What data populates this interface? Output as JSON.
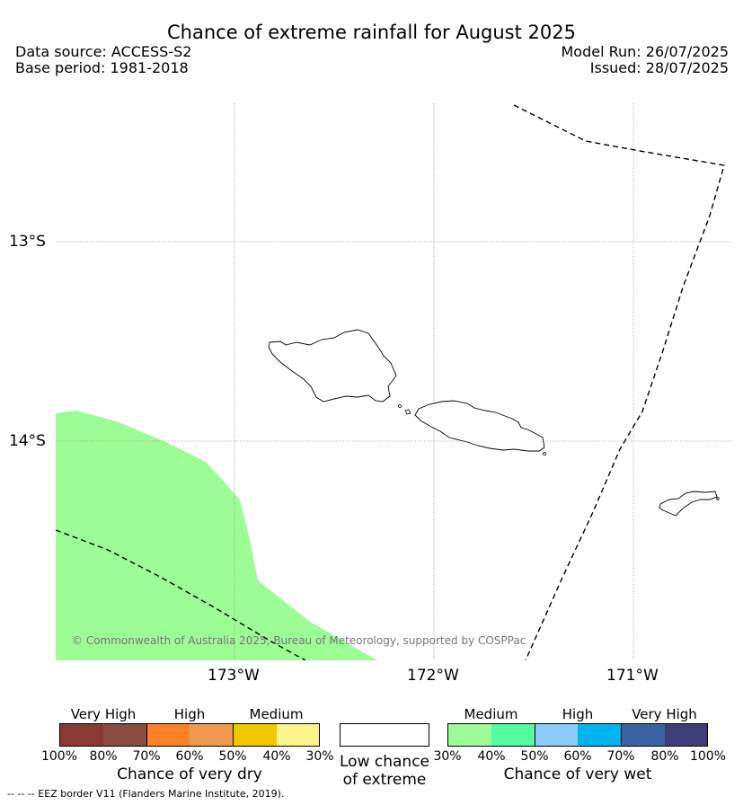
{
  "header": {
    "title": "Chance of extreme rainfall for August 2025",
    "data_source": "Data source: ACCESS-S2",
    "base_period": "Base period: 1981-2018",
    "model_run": "Model Run: 26/07/2025",
    "issued": "Issued: 28/07/2025"
  },
  "map": {
    "lat_labels": [
      "13°S",
      "14°S"
    ],
    "lon_labels": [
      "173°W",
      "172°W",
      "171°W"
    ],
    "credit": "© Commonwealth of Australia 2025, Bureau of Meteorology, supported by COSPPac",
    "wet_region_color": "#9cfc96",
    "eez_line_style": "dashed"
  },
  "legend": {
    "dry": {
      "categories": [
        "Very High",
        "High",
        "Medium"
      ],
      "ticks": [
        "100%",
        "80%",
        "70%",
        "60%",
        "50%",
        "40%",
        "30%"
      ],
      "colors": [
        "#8b3a33",
        "#8b4b3f",
        "#fe8128",
        "#ef9b4e",
        "#f1c800",
        "#fdf48b"
      ],
      "title": "Chance of very dry"
    },
    "low": {
      "title_line1": "Low chance",
      "title_line2": "of extreme",
      "color": "#ffffff"
    },
    "wet": {
      "categories": [
        "Medium",
        "High",
        "Very High"
      ],
      "ticks": [
        "30%",
        "40%",
        "50%",
        "60%",
        "70%",
        "80%",
        "100%"
      ],
      "colors": [
        "#9cfc96",
        "#54fc9f",
        "#89ccfb",
        "#00b4f0",
        "#3a62a2",
        "#413c7a"
      ],
      "title": "Chance of very wet"
    }
  },
  "footer": {
    "eez_note": "--  --  -- EEZ border V11 (Flanders Marine Institute, 2019)."
  }
}
